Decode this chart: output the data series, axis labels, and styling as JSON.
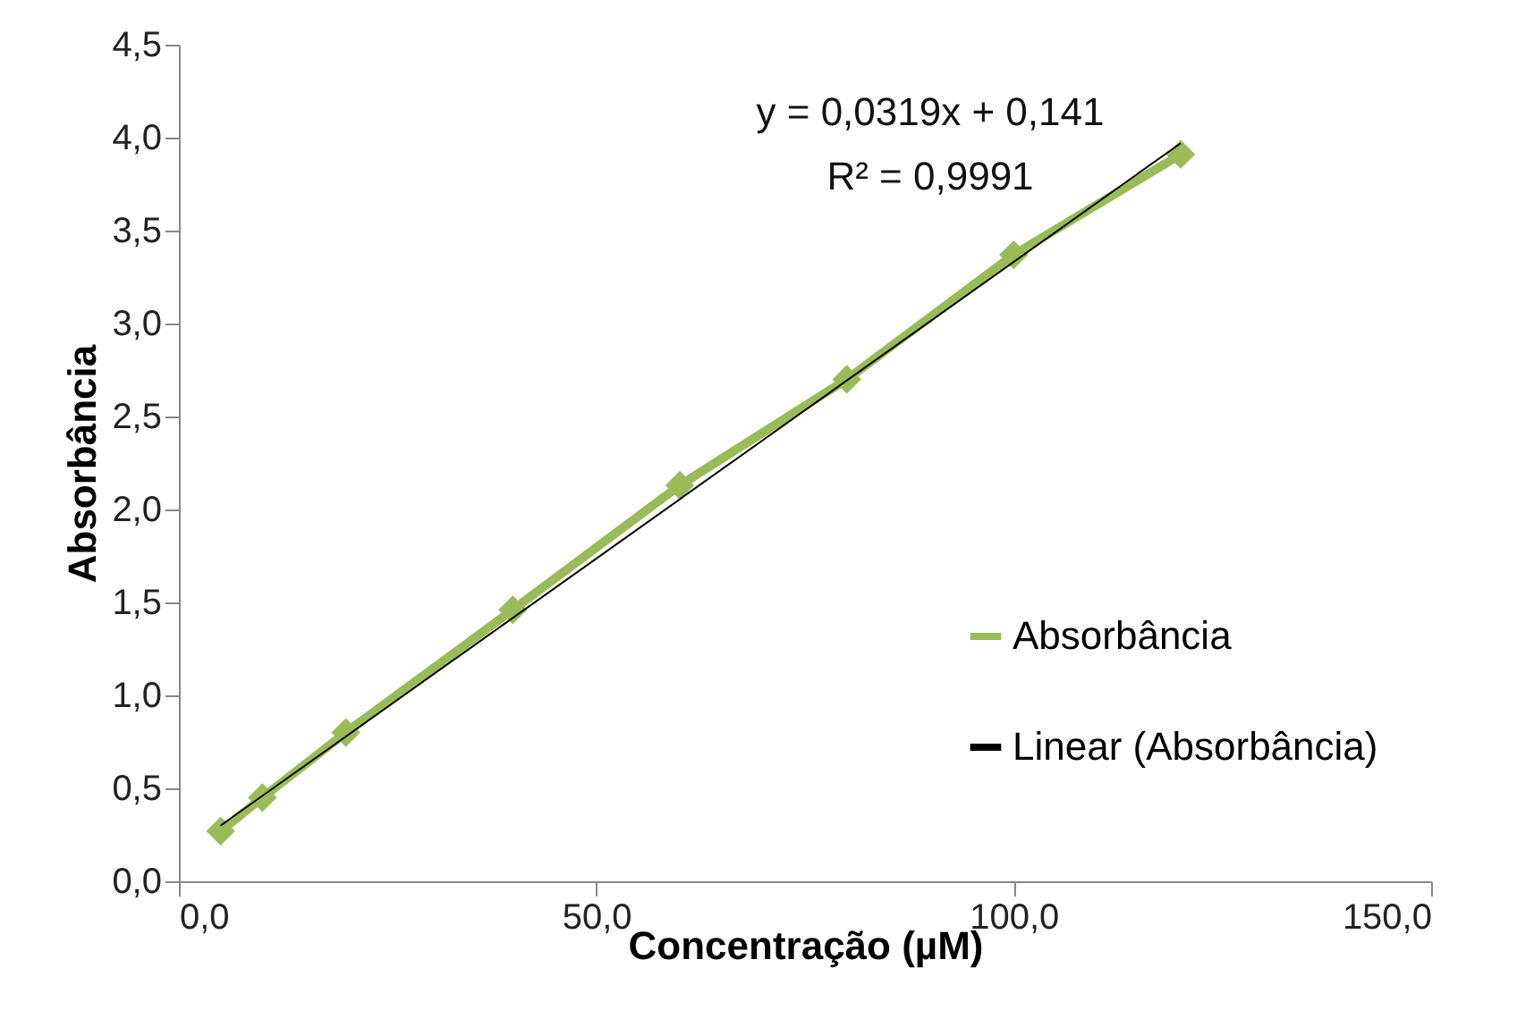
{
  "chart_data": {
    "type": "line",
    "xlabel": "Concentração (µM)",
    "ylabel": "Absorbância",
    "series": [
      {
        "name": "Absorbância",
        "color": "#9bbb59",
        "marker": "diamond",
        "x": [
          5,
          10,
          20,
          40,
          60,
          80,
          100,
          120
        ],
        "values": [
          0.27,
          0.45,
          0.8,
          1.46,
          2.13,
          2.7,
          3.37,
          3.91
        ]
      },
      {
        "name": "Linear (Absorbância)",
        "color": "#000000",
        "marker": "none",
        "x": [
          5,
          120
        ],
        "values": [
          0.3,
          3.97
        ]
      }
    ],
    "annotations": [
      "y = 0,0319x + 0,141",
      "R² = 0,9991"
    ],
    "xlim": [
      0,
      150
    ],
    "ylim": [
      0,
      4.5
    ],
    "xticks": [
      {
        "value": 0,
        "label": "0,0"
      },
      {
        "value": 50,
        "label": "50,0"
      },
      {
        "value": 100,
        "label": "100,0"
      },
      {
        "value": 150,
        "label": "150,0"
      }
    ],
    "yticks": [
      {
        "value": 0,
        "label": "0,0"
      },
      {
        "value": 0.5,
        "label": "0,5"
      },
      {
        "value": 1,
        "label": "1,0"
      },
      {
        "value": 1.5,
        "label": "1,5"
      },
      {
        "value": 2,
        "label": "2,0"
      },
      {
        "value": 2.5,
        "label": "2,5"
      },
      {
        "value": 3,
        "label": "3,0"
      },
      {
        "value": 3.5,
        "label": "3,5"
      },
      {
        "value": 4,
        "label": "4,0"
      },
      {
        "value": 4.5,
        "label": "4,5"
      }
    ],
    "grid": false,
    "legend": "bottom right"
  }
}
